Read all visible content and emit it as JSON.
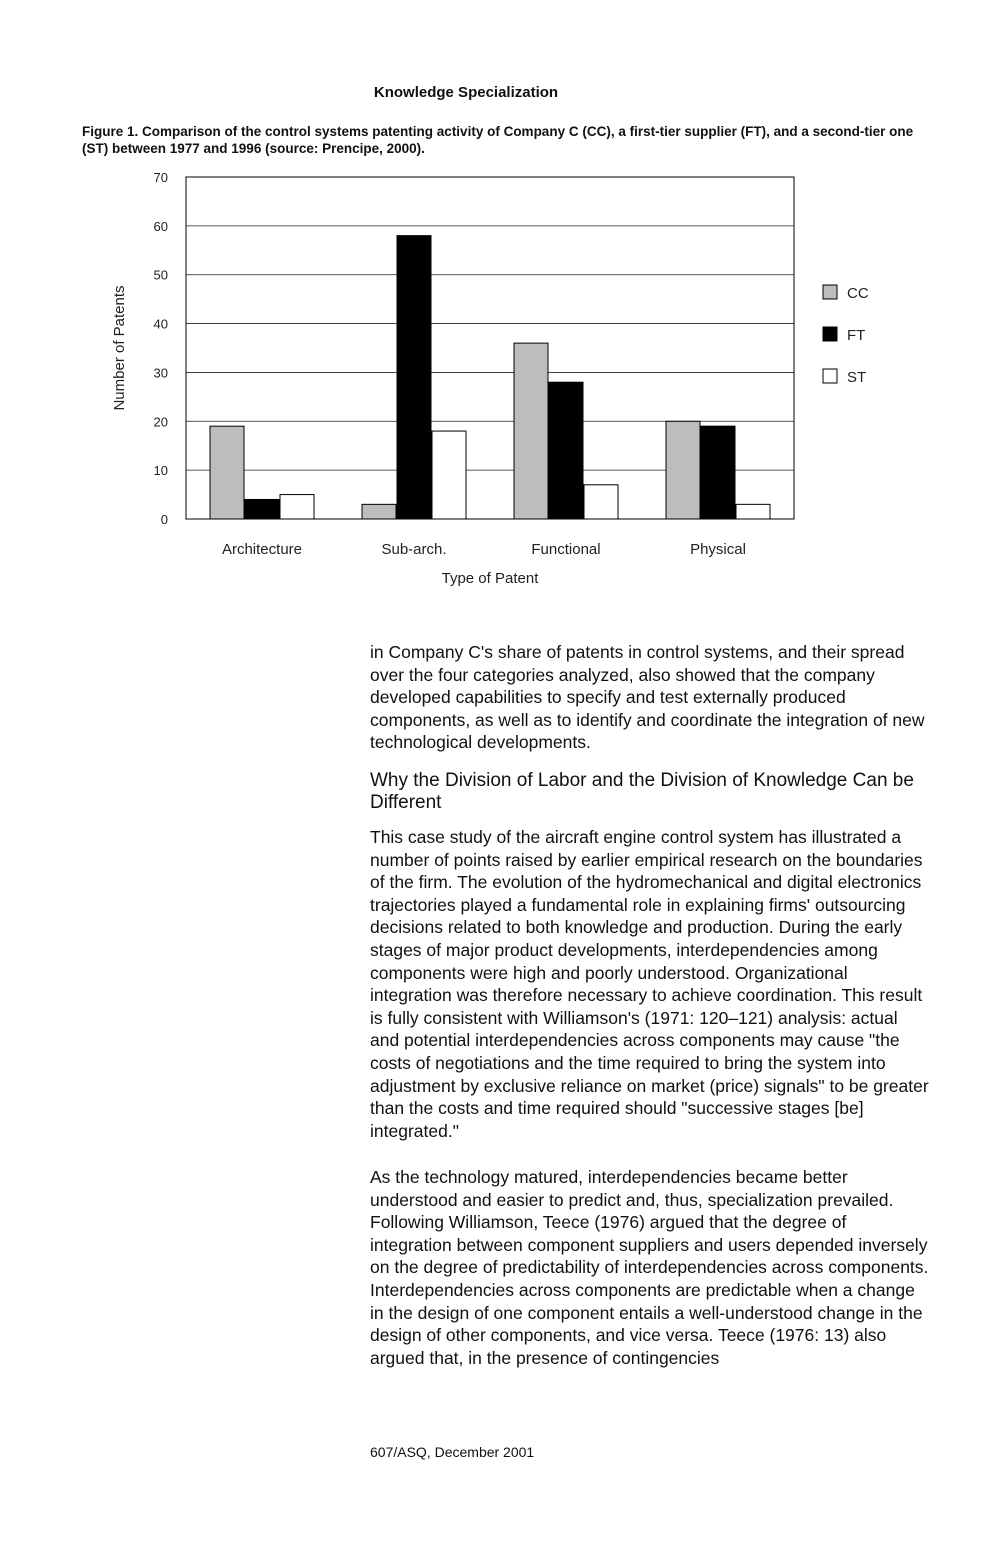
{
  "running_head": "Knowledge Specialization",
  "figure_caption": "Figure 1. Comparison of the control systems patenting activity of Company C (CC), a first-tier supplier (FT), and a second-tier one (ST) between 1977 and 1996 (source: Prencipe, 2000).",
  "chart_data": {
    "type": "bar",
    "title": "",
    "xlabel": "Type of Patent",
    "ylabel": "Number of Patents",
    "ylim": [
      0,
      70
    ],
    "yticks": [
      0,
      10,
      20,
      30,
      40,
      50,
      60,
      70
    ],
    "grid": true,
    "legend": "right",
    "categories": [
      "Architecture",
      "Sub-arch.",
      "Functional",
      "Physical"
    ],
    "series": [
      {
        "name": "CC",
        "values": [
          19,
          3,
          36,
          20
        ],
        "color": "#bdbdbd"
      },
      {
        "name": "FT",
        "values": [
          4,
          58,
          28,
          19
        ],
        "color": "#000000"
      },
      {
        "name": "ST",
        "values": [
          5,
          18,
          7,
          3
        ],
        "color": "#ffffff"
      }
    ]
  },
  "body": {
    "para1": "in Company C's share of patents in control systems, and their spread over the four categories analyzed, also showed that the company developed capabilities to specify and test externally produced components, as well as to identify and coordinate the integration of new technological developments.",
    "section_heading": "Why the Division of Labor and the Division of Knowledge Can be Different",
    "para2": "This case study of the aircraft engine control system has illustrated a number of points raised by earlier empirical research on the boundaries of the firm. The evolution of the hydromechanical and digital electronics trajectories played a fundamental role in explaining firms' outsourcing decisions related to both knowledge and production. During the early stages of major product developments, interdependencies among components were high and poorly understood. Organizational integration was therefore necessary to achieve coordination. This result is fully consistent with Williamson's (1971: 120–121) analysis: actual and potential interdependencies across components may cause \"the costs of negotiations and the time required to bring the system into adjustment by exclusive reliance on market (price) signals\" to be greater than the costs and time required should \"successive stages [be] integrated.\"",
    "para3": "As the technology matured, interdependencies became better understood and easier to predict and, thus, specialization prevailed. Following Williamson, Teece (1976) argued that the degree of integration between component suppliers and users depended inversely on the degree of predictability of interdependencies across components. Interdependencies across components are predictable when a change in the design of one component entails a well-understood change in the design of other components, and vice versa. Teece (1976: 13) also argued that, in the presence of contingencies"
  },
  "footer": "607/ASQ, December 2001"
}
